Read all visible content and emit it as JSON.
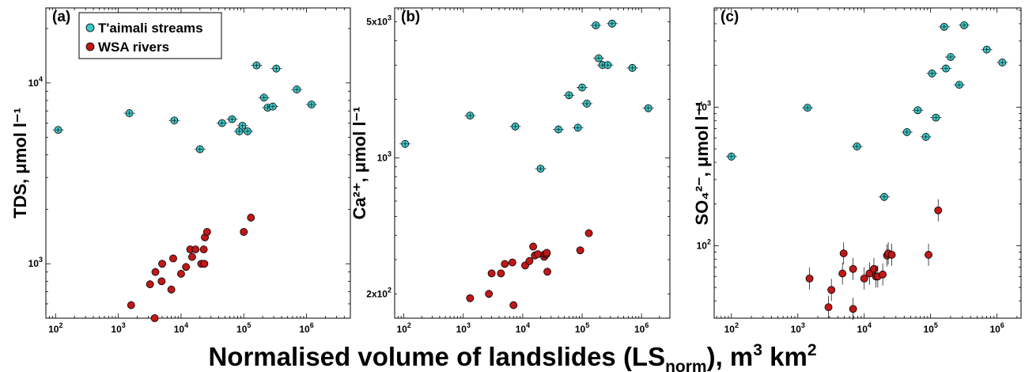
{
  "figure": {
    "xlabel": "Normalised volume of landslides (LS",
    "xlabel_sub": "norm",
    "xlabel_end": "), m",
    "xlabel_sup": "3",
    "xlabel_tail": " km",
    "xlabel_sup2": "2",
    "legend": {
      "items": [
        {
          "label": "T'aimali streams",
          "color": "#3cc8c8"
        },
        {
          "label": "WSA  rivers",
          "color": "#c01818"
        }
      ]
    }
  },
  "colors": {
    "streams": "#3cc8c8",
    "rivers": "#c01818"
  },
  "chart_data": [
    {
      "type": "scatter",
      "panel": "(a)",
      "ylabel": "TDS, μmol l⁻¹",
      "xscale": "log",
      "yscale": "log",
      "xlim": [
        70,
        5000000
      ],
      "ylim": [
        500,
        26000
      ],
      "xticks": [
        100,
        1000,
        10000,
        100000,
        1000000
      ],
      "yticks": [
        1000,
        10000
      ],
      "series": [
        {
          "name": "T'aimali streams",
          "key": "streams",
          "points": [
            [
              110,
              5500
            ],
            [
              1500,
              6800
            ],
            [
              7800,
              6200
            ],
            [
              20000,
              4300
            ],
            [
              45000,
              6000
            ],
            [
              65000,
              6300
            ],
            [
              85000,
              5400
            ],
            [
              95000,
              5800
            ],
            [
              115000,
              5400
            ],
            [
              160000,
              12500
            ],
            [
              210000,
              8300
            ],
            [
              240000,
              7300
            ],
            [
              290000,
              7400
            ],
            [
              330000,
              12000
            ],
            [
              700000,
              9200
            ],
            [
              1200000,
              7600
            ]
          ]
        },
        {
          "name": "WSA  rivers",
          "key": "rivers",
          "points": [
            [
              1600,
              590
            ],
            [
              3200,
              770
            ],
            [
              3900,
              900
            ],
            [
              3800,
              500
            ],
            [
              4900,
              800
            ],
            [
              5000,
              1000
            ],
            [
              7000,
              720
            ],
            [
              7500,
              1070
            ],
            [
              10000,
              880
            ],
            [
              12000,
              960
            ],
            [
              14000,
              1200
            ],
            [
              15000,
              1090
            ],
            [
              17000,
              1200
            ],
            [
              21000,
              1000
            ],
            [
              23000,
              1200
            ],
            [
              24000,
              1400
            ],
            [
              26000,
              1500
            ],
            [
              23500,
              1000
            ],
            [
              100000,
              1500
            ],
            [
              130000,
              1800
            ]
          ]
        }
      ]
    },
    {
      "type": "scatter",
      "panel": "(b)",
      "ylabel": "Ca²⁺, μmol l⁻¹",
      "xscale": "log",
      "yscale": "log",
      "xlim": [
        70,
        3000000
      ],
      "ylim": [
        150,
        5900
      ],
      "xticks": [
        100,
        1000,
        10000,
        100000,
        1000000
      ],
      "ytick_labels": [
        {
          "value": 200,
          "label": "2x10",
          "sup": "2"
        },
        {
          "value": 1000,
          "label": "10",
          "sup": "3"
        },
        {
          "value": 5000,
          "label": "5x10",
          "sup": "3"
        }
      ],
      "series": [
        {
          "name": "T'aimali streams",
          "key": "streams",
          "points": [
            [
              105,
              1180
            ],
            [
              1300,
              1650
            ],
            [
              7500,
              1450
            ],
            [
              20000,
              880
            ],
            [
              40000,
              1400
            ],
            [
              60000,
              2100
            ],
            [
              85000,
              1430
            ],
            [
              100000,
              2300
            ],
            [
              120000,
              1900
            ],
            [
              170000,
              4800
            ],
            [
              190000,
              3250
            ],
            [
              220000,
              3000
            ],
            [
              270000,
              3000
            ],
            [
              320000,
              4900
            ],
            [
              700000,
              2900
            ],
            [
              1300000,
              1800
            ]
          ]
        },
        {
          "name": "WSA  rivers",
          "key": "rivers",
          "points": [
            [
              1300,
              190
            ],
            [
              2700,
              200
            ],
            [
              3000,
              255
            ],
            [
              4300,
              255
            ],
            [
              5000,
              285
            ],
            [
              6700,
              290
            ],
            [
              7000,
              175
            ],
            [
              11000,
              280
            ],
            [
              13000,
              295
            ],
            [
              15000,
              350
            ],
            [
              16000,
              315
            ],
            [
              18000,
              320
            ],
            [
              23000,
              310
            ],
            [
              23500,
              320
            ],
            [
              25000,
              320
            ],
            [
              25500,
              325
            ],
            [
              26000,
              260
            ],
            [
              93000,
              335
            ],
            [
              130000,
              410
            ]
          ]
        }
      ]
    },
    {
      "type": "scatter",
      "panel": "(c)",
      "ylabel": "SO₄²⁻, μmol l⁻¹",
      "xscale": "log",
      "yscale": "log",
      "xlim": [
        55,
        2300000
      ],
      "ylim": [
        30,
        5200
      ],
      "xticks": [
        100,
        1000,
        10000,
        100000,
        1000000
      ],
      "yticks": [
        100,
        1000
      ],
      "series": [
        {
          "name": "T'aimali streams",
          "key": "streams",
          "points": [
            [
              100,
              440
            ],
            [
              1400,
              990
            ],
            [
              7800,
              520
            ],
            [
              20000,
              225
            ],
            [
              44000,
              660
            ],
            [
              64000,
              950
            ],
            [
              85000,
              610
            ],
            [
              105000,
              1750
            ],
            [
              120000,
              840
            ],
            [
              160000,
              3800
            ],
            [
              170000,
              1900
            ],
            [
              200000,
              2300
            ],
            [
              270000,
              1450
            ],
            [
              320000,
              3900
            ],
            [
              700000,
              2600
            ],
            [
              1200000,
              2100
            ]
          ]
        },
        {
          "name": "WSA  rivers",
          "key": "rivers",
          "points": [
            [
              1500,
              58
            ],
            [
              2900,
              36
            ],
            [
              3200,
              48
            ],
            [
              4700,
              63
            ],
            [
              4900,
              88
            ],
            [
              6800,
              35
            ],
            [
              6800,
              68
            ],
            [
              10000,
              58
            ],
            [
              12000,
              63
            ],
            [
              14000,
              68
            ],
            [
              15000,
              60
            ],
            [
              16000,
              60
            ],
            [
              19000,
              62
            ],
            [
              22000,
              85
            ],
            [
              23000,
              88
            ],
            [
              26000,
              86
            ],
            [
              93000,
              86
            ],
            [
              130000,
              180
            ]
          ]
        }
      ]
    }
  ]
}
